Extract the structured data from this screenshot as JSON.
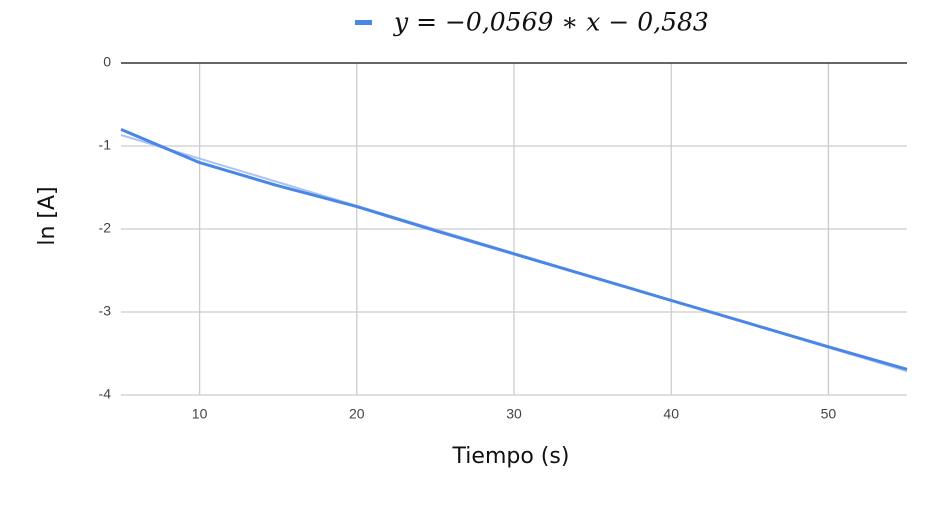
{
  "chart_data": {
    "type": "line",
    "x": [
      5,
      10,
      15,
      20,
      25,
      30,
      35,
      40,
      45,
      50,
      55
    ],
    "series": [
      {
        "name": "y = −0,0569 ∗ x − 0,583",
        "color": "#4a86e8",
        "values": [
          -0.8,
          -1.2,
          -1.48,
          -1.73,
          -2.02,
          -2.3,
          -2.58,
          -2.86,
          -3.14,
          -3.42,
          -3.69
        ]
      }
    ],
    "trendline": {
      "slope": -0.0569,
      "intercept": -0.583,
      "color": "#a9c4f2"
    },
    "x_label": "Tiempo (s)",
    "y_label": "ln [A]",
    "xlim": [
      5,
      55
    ],
    "ylim": [
      -4,
      0
    ],
    "xticks": [
      10,
      20,
      30,
      40,
      50
    ],
    "yticks": [
      0,
      -1,
      -2,
      -3,
      -4
    ],
    "grid": true,
    "legend": "top"
  }
}
